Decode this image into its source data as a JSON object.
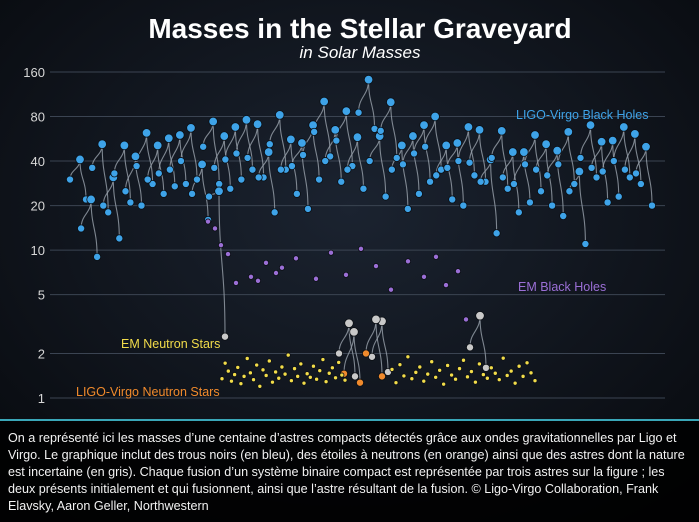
{
  "chart_data": {
    "type": "scatter",
    "title": "Masses in the Stellar Graveyard",
    "subtitle": "in Solar Masses",
    "yscale": "log",
    "ylim": [
      0.85,
      175
    ],
    "yticks": [
      160,
      80,
      40,
      20,
      10,
      5,
      2,
      1
    ],
    "grid": true,
    "series": [
      {
        "name": "LIGO-Virgo Black Holes",
        "color": "#3ea3e8"
      },
      {
        "name": "EM Black Holes",
        "color": "#9b6fd6"
      },
      {
        "name": "EM Neutron Stars",
        "color": "#f2dc4a"
      },
      {
        "name": "LIGO-Virgo Neutron Stars",
        "color": "#f08a2c"
      }
    ],
    "mergers": [
      [
        30,
        22,
        41
      ],
      [
        14,
        9,
        22
      ],
      [
        36,
        18,
        52
      ],
      [
        20,
        12,
        31
      ],
      [
        33,
        21,
        51
      ],
      [
        25,
        20,
        43
      ],
      [
        37,
        28,
        62
      ],
      [
        30,
        24,
        51
      ],
      [
        33,
        27,
        57
      ],
      [
        35,
        28,
        60
      ],
      [
        40,
        30,
        67
      ],
      [
        24,
        16,
        38
      ],
      [
        50,
        28,
        74
      ],
      [
        36,
        26,
        59
      ],
      [
        41,
        30,
        68
      ],
      [
        45,
        35,
        76
      ],
      [
        42,
        31,
        71
      ],
      [
        31,
        18,
        46
      ],
      [
        52,
        35,
        82
      ],
      [
        35,
        24,
        56
      ],
      [
        37,
        19,
        53
      ],
      [
        44,
        30,
        70
      ],
      [
        63,
        43,
        101
      ],
      [
        40,
        29,
        65
      ],
      [
        55,
        37,
        87
      ],
      [
        35,
        26,
        58
      ],
      [
        85,
        66,
        142
      ],
      [
        40,
        23,
        59
      ],
      [
        64,
        42,
        100
      ],
      [
        35,
        19,
        51
      ],
      [
        38,
        24,
        59
      ],
      [
        45,
        29,
        70
      ],
      [
        50,
        35,
        80
      ],
      [
        32,
        22,
        51
      ],
      [
        36,
        20,
        53
      ],
      [
        40,
        32,
        68
      ],
      [
        39,
        29,
        65
      ],
      [
        29,
        13,
        41
      ],
      [
        42,
        26,
        64
      ],
      [
        31,
        18,
        46
      ],
      [
        28,
        21,
        46
      ],
      [
        38,
        25,
        60
      ],
      [
        35,
        20,
        52
      ],
      [
        32,
        17,
        47
      ],
      [
        38,
        28,
        63
      ],
      [
        25,
        11,
        34
      ],
      [
        42,
        31,
        70
      ],
      [
        36,
        21,
        54
      ],
      [
        34,
        23,
        55
      ],
      [
        40,
        31,
        68
      ],
      [
        35,
        28,
        61
      ],
      [
        33,
        20,
        50
      ]
    ],
    "gray_mergers": [
      [
        23,
        2.6,
        25
      ],
      [
        2.0,
        1.4,
        3.2
      ],
      [
        1.9,
        1.5,
        3.3
      ],
      [
        2.2,
        1.6,
        3.6
      ]
    ],
    "ns_mergers": [
      [
        1.46,
        1.27,
        2.8
      ],
      [
        2.0,
        1.4,
        3.4
      ]
    ],
    "em_black_holes": [
      [
        12,
        15.6
      ],
      [
        19,
        14.0
      ],
      [
        25,
        10.8
      ],
      [
        32,
        9.4
      ],
      [
        40,
        6.0
      ],
      [
        55,
        6.6
      ],
      [
        62,
        6.2
      ],
      [
        70,
        8.2
      ],
      [
        80,
        7.0
      ],
      [
        86,
        7.6
      ],
      [
        100,
        8.8
      ],
      [
        120,
        6.4
      ],
      [
        135,
        9.6
      ],
      [
        150,
        6.8
      ],
      [
        165,
        10.2
      ],
      [
        180,
        7.8
      ],
      [
        195,
        5.4
      ],
      [
        212,
        8.4
      ],
      [
        228,
        6.6
      ],
      [
        240,
        9.0
      ],
      [
        250,
        5.8
      ],
      [
        262,
        7.2
      ],
      [
        270,
        3.4
      ]
    ],
    "em_neutron_stars": [
      [
        1.35,
        1.72,
        1.52,
        1.3,
        1.44,
        1.61,
        1.25,
        1.4,
        1.85,
        1.48,
        1.33,
        1.67,
        1.2,
        1.55,
        1.42,
        1.78,
        1.28,
        1.5,
        1.36,
        1.62,
        1.45,
        1.95,
        1.31,
        1.58,
        1.4,
        1.7,
        1.26,
        1.46,
        1.38,
        1.64,
        1.34,
        1.53,
        1.82,
        1.29,
        1.47,
        1.6,
        1.37,
        1.74,
        1.43,
        1.32
      ],
      [
        1.56,
        1.27,
        1.68,
        1.41,
        1.9,
        1.35,
        1.49,
        1.62,
        1.3,
        1.45,
        1.76,
        1.38,
        1.54,
        1.24,
        1.66,
        1.43,
        1.34,
        1.58,
        1.8,
        1.39,
        1.51,
        1.28,
        1.7,
        1.44,
        1.36,
        1.6,
        1.47,
        1.33,
        1.86,
        1.42,
        1.52,
        1.26,
        1.64,
        1.4,
        1.73,
        1.48,
        1.31
      ]
    ],
    "legend_placement": "inline labels"
  },
  "caption": "On a représenté ici les masses d’une centaine d’astres compacts détectés grâce aux ondes gravitationnelles par Ligo et Virgo. Le graphique inclut des trous noirs (en bleu), des étoiles à neutrons (en orange) ainsi que des astres dont la nature est incertaine (en gris). Chaque fusion d’un système binaire compact est représentée par trois astres sur la figure ; les deux présents initialement et qui fusionnent, ainsi que l’astre résultant de la fusion. © Ligo-Virgo Collaboration, Frank Elavsky, Aaron Geller, Northwestern"
}
